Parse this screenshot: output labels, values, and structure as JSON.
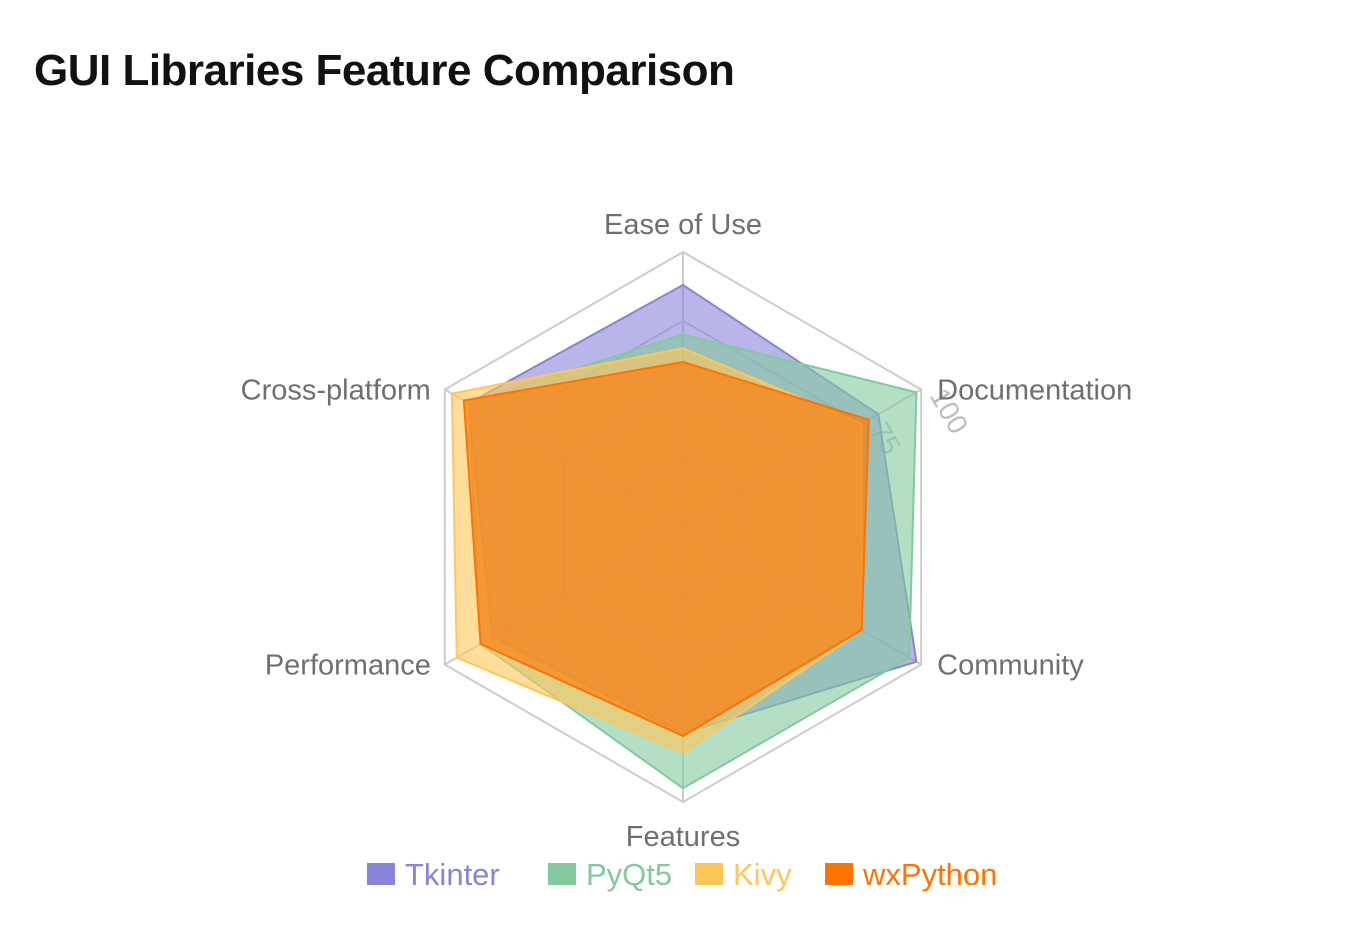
{
  "page": {
    "title": "GUI Libraries Feature Comparison"
  },
  "chart_data": {
    "type": "radar",
    "title": "GUI Libraries Feature Comparison",
    "categories": [
      "Ease of Use",
      "Documentation",
      "Community",
      "Features",
      "Performance",
      "Cross-platform"
    ],
    "rlim": [
      0,
      100
    ],
    "ticks": [
      25,
      50,
      75,
      100
    ],
    "tick_labels_visible": [
      "75",
      "100"
    ],
    "grid": true,
    "legend_position": "bottom",
    "series": [
      {
        "name": "Tkinter",
        "values": [
          88,
          82,
          98,
          75,
          80,
          90
        ],
        "color": "#8884d8"
      },
      {
        "name": "PyQt5",
        "values": [
          70,
          98,
          95,
          95,
          85,
          90
        ],
        "color": "#82ca9d"
      },
      {
        "name": "Kivy",
        "values": [
          65,
          75,
          75,
          82,
          95,
          97
        ],
        "color": "#ffc658"
      },
      {
        "name": "wxPython",
        "values": [
          60,
          78,
          75,
          76,
          85,
          92
        ],
        "color": "#ff7300"
      }
    ]
  }
}
